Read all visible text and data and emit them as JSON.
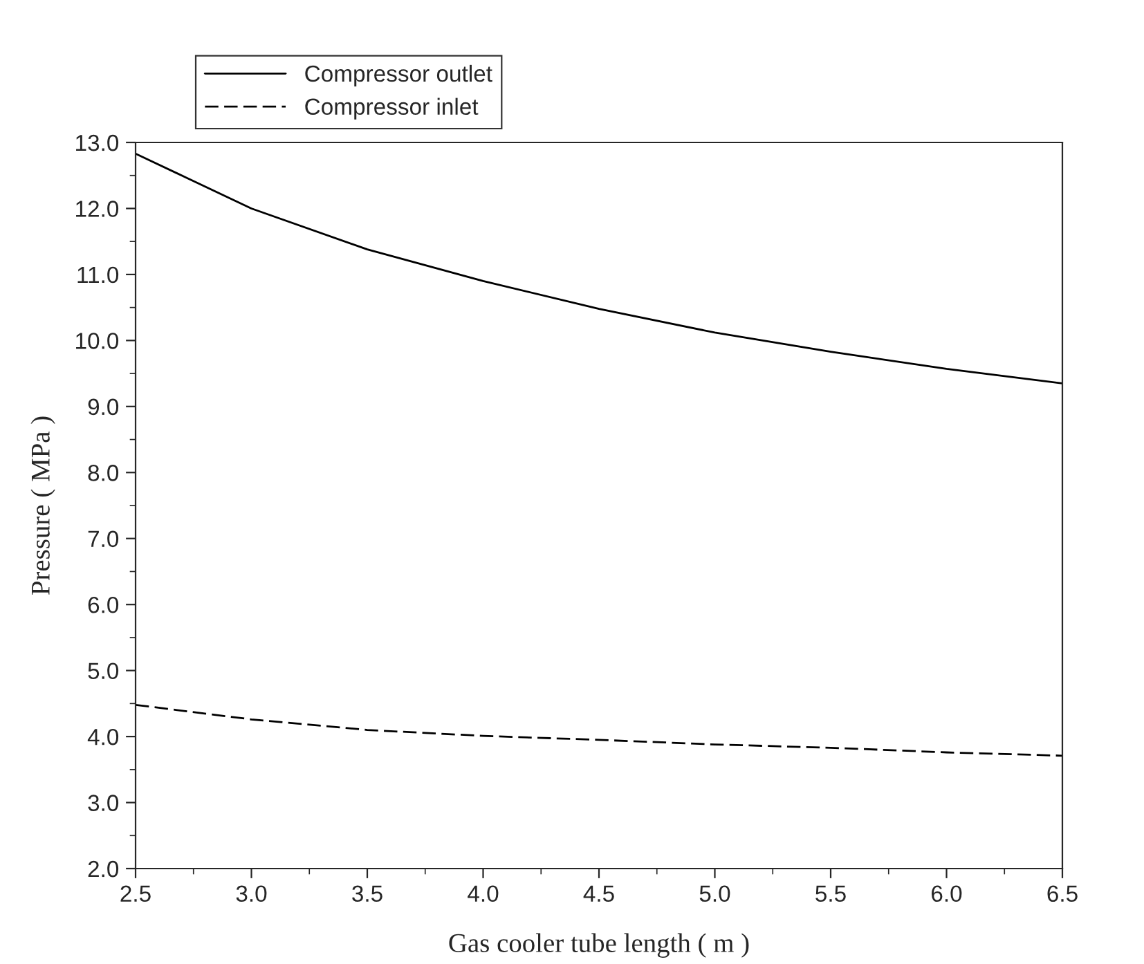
{
  "chart_data": {
    "type": "line",
    "xlabel": "Gas cooler tube length ( m )",
    "ylabel": "Pressure ( MPa )",
    "x": [
      2.5,
      3.0,
      3.5,
      4.0,
      4.5,
      5.0,
      5.5,
      6.0,
      6.5
    ],
    "series": [
      {
        "name": "Compressor outlet",
        "color": "#000000",
        "line_style": "solid",
        "values": [
          12.83,
          12.0,
          11.38,
          10.9,
          10.48,
          10.12,
          9.83,
          9.57,
          9.35
        ]
      },
      {
        "name": "Compressor inlet",
        "color": "#000000",
        "line_style": "dashed",
        "values": [
          4.48,
          4.26,
          4.1,
          4.01,
          3.95,
          3.88,
          3.83,
          3.76,
          3.71
        ]
      }
    ],
    "xlim": [
      2.5,
      6.5
    ],
    "xticks": [
      2.5,
      {
        "value": 3,
        "label": "3.0"
      },
      3.5,
      {
        "value": 4,
        "label": "4.0"
      },
      4.5,
      {
        "value": 5,
        "label": "5.0"
      },
      5.5,
      {
        "value": 6,
        "label": "6.0"
      },
      6.5
    ],
    "ylim": [
      2.0,
      13.0
    ],
    "yticks": [
      {
        "value": 2,
        "label": "2.0"
      },
      {
        "value": 3,
        "label": "3.0"
      },
      {
        "value": 4,
        "label": "4.0"
      },
      {
        "value": 5,
        "label": "5.0"
      },
      {
        "value": 6,
        "label": "6.0"
      },
      {
        "value": 7,
        "label": "7.0"
      },
      {
        "value": 8,
        "label": "8.0"
      },
      {
        "value": 9,
        "label": "9.0"
      },
      {
        "value": 10,
        "label": "10.0"
      },
      {
        "value": 11,
        "label": "11.0"
      },
      {
        "value": 12,
        "label": "12.0"
      },
      {
        "value": 13,
        "label": "13.0"
      }
    ],
    "grid": false,
    "legend": "top left",
    "marker": "none"
  }
}
